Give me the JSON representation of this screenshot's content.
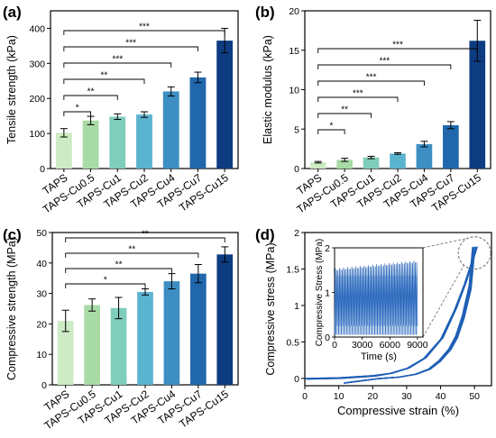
{
  "figure": {
    "panels": [
      {
        "label": "(a)",
        "chart_data": {
          "type": "bar",
          "categories": [
            "TAPS",
            "TAPS-Cu0.5",
            "TAPS-Cu1",
            "TAPS-Cu2",
            "TAPS-Cu4",
            "TAPS-Cu7",
            "TAPS-Cu15"
          ],
          "values": [
            102,
            137,
            148,
            154,
            220,
            260,
            365
          ],
          "errors": [
            12,
            12,
            8,
            8,
            13,
            15,
            35
          ],
          "colors": [
            "#cdebc5",
            "#a9dba6",
            "#7fcdbb",
            "#5bb4cf",
            "#3d8ec2",
            "#2167ac",
            "#0d3c81"
          ],
          "title": "",
          "xlabel": "",
          "ylabel": "Tensile strength (kPa)",
          "ylim": [
            0,
            450
          ],
          "yticks": [
            0,
            100,
            200,
            300,
            400
          ],
          "significance": [
            {
              "from": 0,
              "to": 1,
              "label": "*"
            },
            {
              "from": 0,
              "to": 2,
              "label": "**"
            },
            {
              "from": 0,
              "to": 3,
              "label": "**"
            },
            {
              "from": 0,
              "to": 4,
              "label": "***"
            },
            {
              "from": 0,
              "to": 5,
              "label": "***"
            },
            {
              "from": 0,
              "to": 6,
              "label": "***"
            }
          ]
        }
      },
      {
        "label": "(b)",
        "chart_data": {
          "type": "bar",
          "categories": [
            "TAPS",
            "TAPS-Cu0.5",
            "TAPS-Cu1",
            "TAPS-Cu2",
            "TAPS-Cu4",
            "TAPS-Cu7",
            "TAPS-Cu15"
          ],
          "values": [
            0.8,
            1.1,
            1.4,
            1.9,
            3.1,
            5.5,
            16.2
          ],
          "errors": [
            0.1,
            0.2,
            0.15,
            0.1,
            0.35,
            0.45,
            2.6
          ],
          "colors": [
            "#cdebc5",
            "#a9dba6",
            "#7fcdbb",
            "#5bb4cf",
            "#3d8ec2",
            "#2167ac",
            "#0d3c81"
          ],
          "title": "",
          "xlabel": "",
          "ylabel": "Elastic modulus (kPa)",
          "ylim": [
            0,
            20
          ],
          "yticks": [
            0,
            5,
            10,
            15,
            20
          ],
          "significance": [
            {
              "from": 0,
              "to": 1,
              "label": "*"
            },
            {
              "from": 0,
              "to": 2,
              "label": "**"
            },
            {
              "from": 0,
              "to": 3,
              "label": "***"
            },
            {
              "from": 0,
              "to": 4,
              "label": "***"
            },
            {
              "from": 0,
              "to": 5,
              "label": "***"
            },
            {
              "from": 0,
              "to": 6,
              "label": "***"
            }
          ]
        }
      },
      {
        "label": "(c)",
        "chart_data": {
          "type": "bar",
          "categories": [
            "TAPS",
            "TAPS-Cu0.5",
            "TAPS-Cu1",
            "TAPS-Cu2",
            "TAPS-Cu4",
            "TAPS-Cu7",
            "TAPS-Cu15"
          ],
          "values": [
            21,
            26.2,
            25.2,
            30.5,
            34,
            36.5,
            42.8
          ],
          "errors": [
            3.5,
            2,
            3.5,
            1,
            2.5,
            3,
            2.5
          ],
          "colors": [
            "#cdebc5",
            "#a9dba6",
            "#7fcdbb",
            "#5bb4cf",
            "#3d8ec2",
            "#2167ac",
            "#0d3c81"
          ],
          "title": "",
          "xlabel": "",
          "ylabel": "Compressive strength (MPa)",
          "ylim": [
            0,
            50
          ],
          "yticks": [
            0,
            10,
            20,
            30,
            40,
            50
          ],
          "significance": [
            {
              "from": 0,
              "to": 3,
              "label": "*"
            },
            {
              "from": 0,
              "to": 4,
              "label": "**"
            },
            {
              "from": 0,
              "to": 5,
              "label": "**"
            },
            {
              "from": 0,
              "to": 6,
              "label": "**"
            }
          ]
        }
      },
      {
        "label": "(d)",
        "chart_data": {
          "type": "line",
          "title": "",
          "xlabel": "Compressive strain (%)",
          "ylabel": "Compressive stress (MPa)",
          "xlim": [
            0,
            55
          ],
          "ylim": [
            -0.1,
            2.0
          ],
          "xticks": [
            0,
            10,
            20,
            30,
            40,
            50
          ],
          "yticks": [
            0.0,
            0.5,
            1.0,
            1.5,
            2.0
          ],
          "color": "#1f5fb6",
          "cycles": 10,
          "loading_curve": {
            "x": [
              0,
              10,
              20,
              25,
              30,
              35,
              40,
              44,
              47,
              50
            ],
            "y": [
              0,
              0.01,
              0.04,
              0.07,
              0.14,
              0.28,
              0.55,
              0.95,
              1.32,
              1.76
            ]
          },
          "unloading_curve": {
            "x": [
              50,
              49,
              47,
              45,
              43,
              40,
              37,
              33,
              28,
              22,
              17,
              12
            ],
            "y": [
              1.76,
              1.25,
              0.85,
              0.57,
              0.4,
              0.24,
              0.13,
              0.06,
              0.02,
              0.0,
              -0.03,
              -0.06
            ]
          },
          "peak_range": [
            1.72,
            1.8
          ],
          "inset": {
            "xlabel": "Time (s)",
            "ylabel": "Compressive Stress (MPa)",
            "xlim": [
              0,
              9600
            ],
            "ylim": [
              0,
              2
            ],
            "xticks": [
              0,
              3000,
              6000,
              9000
            ],
            "yticks": [
              0,
              1,
              2
            ],
            "peak_start": 1.5,
            "peak_end": 1.68,
            "n_cycles": 60
          }
        }
      }
    ]
  }
}
